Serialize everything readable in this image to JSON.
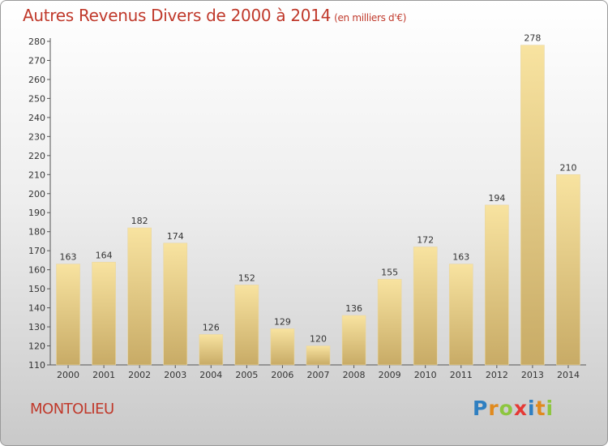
{
  "header": {
    "title": "Autres Revenus Divers de 2000 à 2014",
    "subtitle": "(en milliers d'€)"
  },
  "footer": {
    "commune": "MONTOLIEU",
    "logo_letters": [
      "P",
      "r",
      "o",
      "x",
      "i",
      "t",
      "i"
    ]
  },
  "colors": {
    "title": "#c0392b",
    "bar_top": "#f8e3a0",
    "bar_bottom": "#c8ab66"
  },
  "chart_data": {
    "type": "bar",
    "title": "Autres Revenus Divers de 2000 à 2014",
    "subtitle": "(en milliers d'€)",
    "categories": [
      "2000",
      "2001",
      "2002",
      "2003",
      "2004",
      "2005",
      "2006",
      "2007",
      "2008",
      "2009",
      "2010",
      "2011",
      "2012",
      "2013",
      "2014"
    ],
    "values": [
      163,
      164,
      182,
      174,
      126,
      152,
      129,
      120,
      136,
      155,
      172,
      163,
      194,
      278,
      210
    ],
    "ylim": [
      110,
      280
    ],
    "yticks": [
      110,
      120,
      130,
      140,
      150,
      160,
      170,
      180,
      190,
      200,
      210,
      220,
      230,
      240,
      250,
      260,
      270,
      280
    ],
    "grid": false,
    "data_labels": true
  }
}
